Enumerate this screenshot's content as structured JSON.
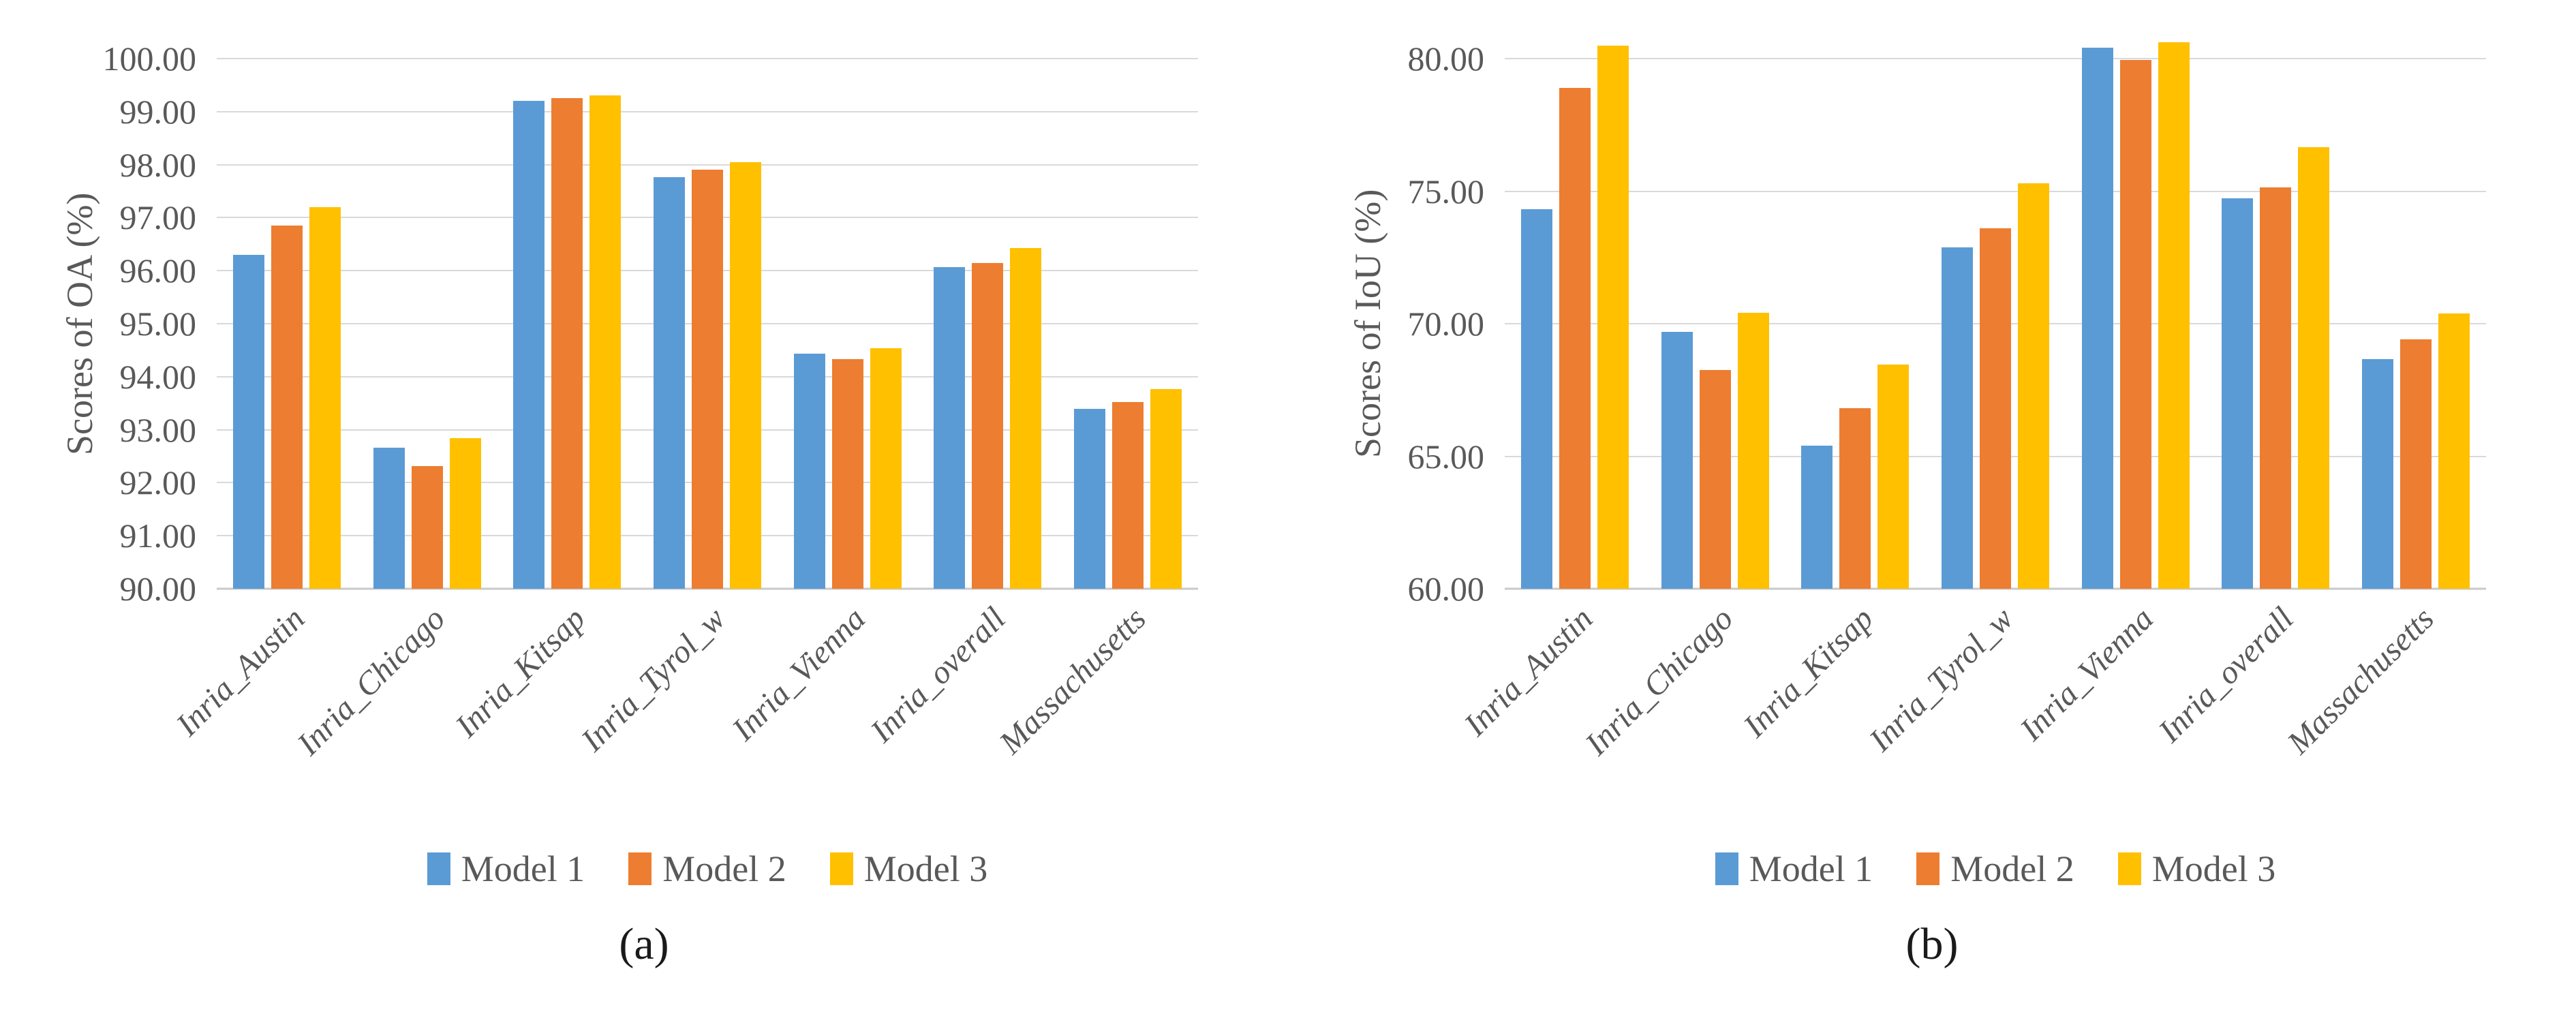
{
  "figure": {
    "background": "#FFFFFF",
    "text_color": "#595959",
    "gridline_color": "#D9D9D9",
    "caption_color": "#1A1A1A"
  },
  "chart_data": [
    {
      "type": "bar",
      "caption": "(a)",
      "ylabel": "Scores of OA (%)",
      "ymin": 90,
      "ymax": 100,
      "ystep": 1,
      "grid": true,
      "legend_position": "bottom",
      "categories": [
        "Inria_Austin",
        "Inria_Chicago",
        "Inria_Kitsap",
        "Inria_Tyrol_w",
        "Inria_Vienna",
        "Inria_overall",
        "Massachusetts"
      ],
      "yticks": [
        "100.00",
        "99.00",
        "98.00",
        "97.00",
        "96.00",
        "95.00",
        "94.00",
        "93.00",
        "92.00",
        "91.00",
        "90.00"
      ],
      "series": [
        {
          "name": "Model 1",
          "color": "#5B9BD5",
          "values": [
            96.3,
            92.66,
            99.2,
            97.76,
            94.44,
            96.07,
            93.39
          ]
        },
        {
          "name": "Model 2",
          "color": "#ED7D31",
          "values": [
            96.85,
            92.32,
            99.26,
            97.9,
            94.33,
            96.14,
            93.52
          ]
        },
        {
          "name": "Model 3",
          "color": "#FFC000",
          "values": [
            97.2,
            92.84,
            99.3,
            98.05,
            94.54,
            96.43,
            93.76
          ]
        }
      ]
    },
    {
      "type": "bar",
      "caption": "(b)",
      "ylabel": "Scores of IoU (%)",
      "ymin": 60,
      "ymax": 80,
      "ystep": 5,
      "grid": true,
      "legend_position": "bottom",
      "categories": [
        "Inria_Austin",
        "Inria_Chicago",
        "Inria_Kitsap",
        "Inria_Tyrol_w",
        "Inria_Vienna",
        "Inria_overall",
        "Massachusetts"
      ],
      "yticks": [
        "80.00",
        "75.00",
        "70.00",
        "65.00",
        "60.00"
      ],
      "series": [
        {
          "name": "Model 1",
          "color": "#5B9BD5",
          "values": [
            74.31,
            69.69,
            65.4,
            72.88,
            80.41,
            74.73,
            68.67
          ]
        },
        {
          "name": "Model 2",
          "color": "#ED7D31",
          "values": [
            78.9,
            68.25,
            66.82,
            73.6,
            79.96,
            75.13,
            69.42
          ]
        },
        {
          "name": "Model 3",
          "color": "#FFC000",
          "values": [
            80.49,
            70.41,
            68.45,
            75.3,
            80.62,
            76.66,
            70.38
          ]
        }
      ]
    }
  ]
}
